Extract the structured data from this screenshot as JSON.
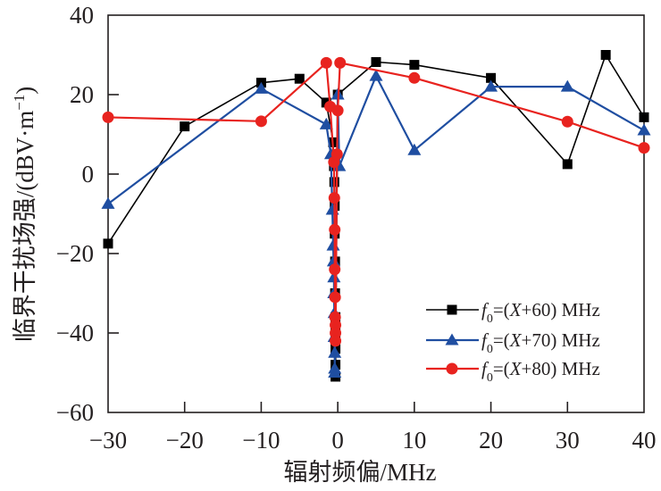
{
  "chart_data": {
    "type": "line",
    "title": "",
    "xlabel": "辐射频偏/MHz",
    "ylabel": "临界干扰场强/(dBV·m⁻¹)",
    "ylabel_parts": {
      "main": "临界干扰场强/(dBV·m",
      "sup": "−1",
      "close": ")"
    },
    "xlim": [
      -30,
      40
    ],
    "ylim": [
      -60,
      40
    ],
    "xticks": [
      -30,
      -20,
      -10,
      0,
      10,
      20,
      30,
      40
    ],
    "yticks": [
      -60,
      -40,
      -20,
      0,
      20,
      40
    ],
    "xtick_labels": [
      "−30",
      "−20",
      "−10",
      "0",
      "10",
      "20",
      "30",
      "40"
    ],
    "ytick_labels": [
      "−60",
      "−40",
      "−20",
      "0",
      "20",
      "40"
    ],
    "grid": false,
    "legend_position": "lower-right",
    "series": [
      {
        "name": "f0=(X+60) MHz",
        "legend": {
          "f": "f",
          "sub": "0",
          "rest_a": "=(",
          "x": "X",
          "rest_b": "+60) MHz"
        },
        "color": "#000000",
        "marker": "square",
        "points": [
          [
            -30,
            -17.5
          ],
          [
            -20,
            12
          ],
          [
            -10,
            23
          ],
          [
            -5,
            24
          ],
          [
            -1.5,
            18
          ],
          [
            -0.6,
            8
          ],
          [
            -0.5,
            2
          ],
          [
            -0.45,
            -2
          ],
          [
            -0.4,
            -8
          ],
          [
            -0.4,
            -15
          ],
          [
            -0.35,
            -22
          ],
          [
            -0.35,
            -30
          ],
          [
            -0.3,
            -36
          ],
          [
            -0.3,
            -40
          ],
          [
            -0.3,
            -44
          ],
          [
            -0.3,
            -48
          ],
          [
            -0.3,
            -51
          ],
          [
            0,
            20
          ],
          [
            5,
            28.2
          ],
          [
            10,
            27.5
          ],
          [
            20,
            24.2
          ],
          [
            30,
            2.5
          ],
          [
            35,
            30
          ],
          [
            40,
            14.3
          ]
        ]
      },
      {
        "name": "f0=(X+70) MHz",
        "legend": {
          "f": "f",
          "sub": "0",
          "rest_a": "=(",
          "x": "X",
          "rest_b": "+70) MHz"
        },
        "color": "#1f4ea1",
        "marker": "triangle",
        "points": [
          [
            -30,
            -7.5
          ],
          [
            -10,
            21.5
          ],
          [
            -1.5,
            12.5
          ],
          [
            -0.9,
            5
          ],
          [
            -0.7,
            -9
          ],
          [
            -0.6,
            -18
          ],
          [
            -0.55,
            -22
          ],
          [
            -0.5,
            -26
          ],
          [
            -0.5,
            -30
          ],
          [
            -0.45,
            -35
          ],
          [
            -0.45,
            -41
          ],
          [
            -0.4,
            -45
          ],
          [
            -0.4,
            -49
          ],
          [
            -0.4,
            -50
          ],
          [
            0,
            20
          ],
          [
            0.2,
            2
          ],
          [
            5,
            24.7
          ],
          [
            10,
            6
          ],
          [
            20,
            22
          ],
          [
            30,
            22
          ],
          [
            40,
            11
          ]
        ]
      },
      {
        "name": "f0=(X+80) MHz",
        "legend": {
          "f": "f",
          "sub": "0",
          "rest_a": "=(",
          "x": "X",
          "rest_b": "+80) MHz"
        },
        "color": "#e8231f",
        "marker": "circle",
        "points": [
          [
            -30,
            14.3
          ],
          [
            -10,
            13.3
          ],
          [
            -1.5,
            28
          ],
          [
            -1.0,
            17
          ],
          [
            -0.5,
            3
          ],
          [
            -0.45,
            -6
          ],
          [
            -0.4,
            -14
          ],
          [
            -0.4,
            -24
          ],
          [
            -0.35,
            -31
          ],
          [
            -0.35,
            -36
          ],
          [
            -0.3,
            -38
          ],
          [
            -0.3,
            -40
          ],
          [
            -0.3,
            -42
          ],
          [
            -0.1,
            5
          ],
          [
            0,
            16
          ],
          [
            0.3,
            28
          ],
          [
            10,
            24.2
          ],
          [
            30,
            13.2
          ],
          [
            40,
            6.6
          ]
        ]
      }
    ]
  }
}
